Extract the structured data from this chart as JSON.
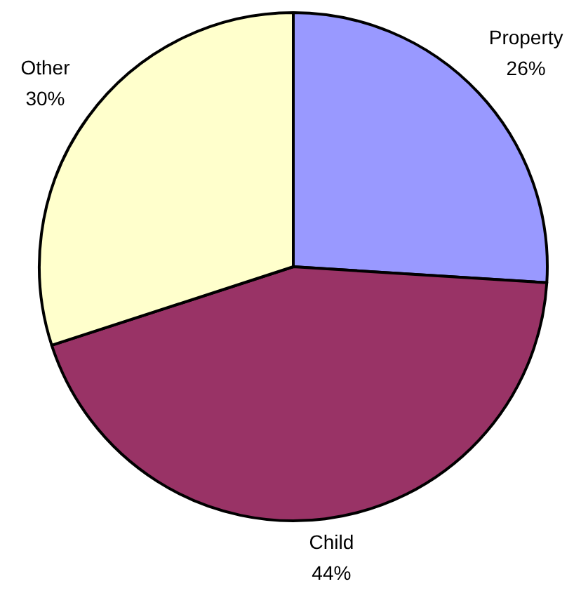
{
  "chart_data": {
    "type": "pie",
    "categories": [
      "Property",
      "Child",
      "Other"
    ],
    "values": [
      26,
      44,
      30
    ],
    "colors": [
      "#9999ff",
      "#993366",
      "#ffffcc"
    ],
    "value_labels": [
      "26%",
      "44%",
      "30%"
    ]
  }
}
